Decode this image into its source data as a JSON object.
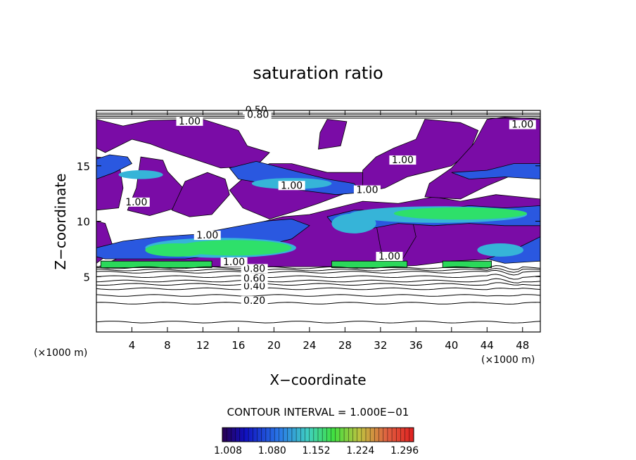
{
  "chart_data": {
    "type": "heatmap",
    "title": "saturation ratio",
    "xlabel": "X−coordinate",
    "ylabel": "Z−coordinate",
    "x_unit_left": "(×1000 m)",
    "x_unit_right": "(×1000 m)",
    "xlim": [
      0,
      50
    ],
    "ylim": [
      0,
      20
    ],
    "xticks": [
      4,
      8,
      12,
      16,
      20,
      24,
      28,
      32,
      36,
      40,
      44,
      48
    ],
    "yticks": [
      5,
      10,
      15
    ],
    "contour_interval_text": "CONTOUR INTERVAL = 1.000E−01",
    "contour_levels": [
      0.1,
      0.2,
      0.3,
      0.4,
      0.5,
      0.6,
      0.7,
      0.8,
      0.9,
      1.0
    ],
    "contour_labels": [
      {
        "text": "0.20",
        "x": 17.8,
        "y": 2.6
      },
      {
        "text": "0.40",
        "x": 17.8,
        "y": 3.9
      },
      {
        "text": "0.60",
        "x": 17.8,
        "y": 4.6
      },
      {
        "text": "0.80",
        "x": 17.8,
        "y": 5.5
      },
      {
        "text": "1.00",
        "x": 15.5,
        "y": 6.1
      },
      {
        "text": "1.00",
        "x": 12.5,
        "y": 8.5
      },
      {
        "text": "1.00",
        "x": 22.0,
        "y": 13.0
      },
      {
        "text": "1.00",
        "x": 30.5,
        "y": 12.6
      },
      {
        "text": "1.00",
        "x": 33.0,
        "y": 6.6
      },
      {
        "text": "1.00",
        "x": 34.5,
        "y": 15.3
      },
      {
        "text": "1.00",
        "x": 48.0,
        "y": 18.5
      },
      {
        "text": "1.00",
        "x": 10.5,
        "y": 18.8
      },
      {
        "text": "1.00",
        "x": 4.5,
        "y": 11.5
      },
      {
        "text": "0.50",
        "x": 18.0,
        "y": 19.8
      },
      {
        "text": "0.80",
        "x": 18.2,
        "y": 19.4
      }
    ],
    "colorbar": {
      "min": 1.008,
      "max": 1.32,
      "tick_labels": [
        "1.008",
        "1.080",
        "1.152",
        "1.224",
        "1.296"
      ]
    },
    "colors": {
      "purple": "#7a0ca6",
      "blue": "#2a58e0",
      "cyan": "#36b4d8",
      "green": "#2ee06a",
      "cloud_base_green": "#2bd85a"
    }
  }
}
